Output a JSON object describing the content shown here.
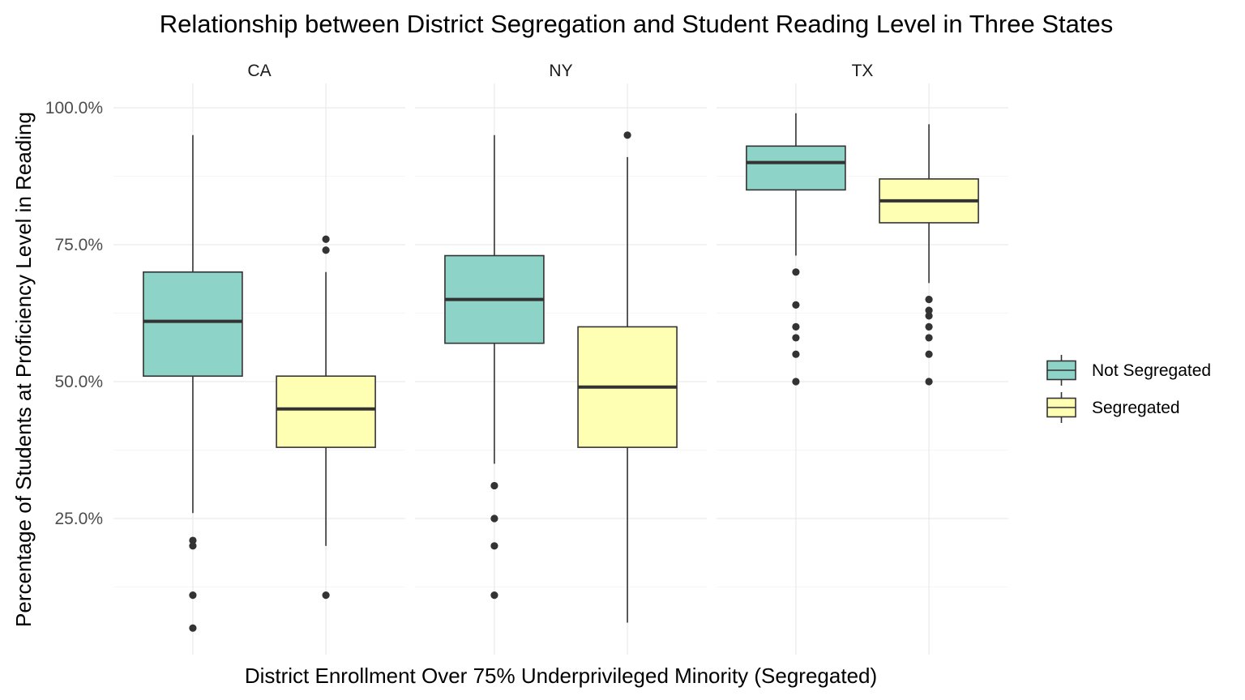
{
  "chart_data": {
    "type": "boxplot",
    "title": "Relationship between District Segregation and Student Reading Level in Three States",
    "xlabel": "District Enrollment Over 75% Underprivileged Minority (Segregated)",
    "ylabel": "Percentage of Students at Proficiency Level in Reading",
    "ylim": [
      0.0,
      1.0
    ],
    "y_ticks": [
      0.25,
      0.5,
      0.75,
      1.0
    ],
    "y_tick_labels": [
      "25.0%",
      "50.0%",
      "75.0%",
      "100.0%"
    ],
    "grid": true,
    "legend_position": "right",
    "series": [
      {
        "name": "Not Segregated",
        "color": "#8DD3C7"
      },
      {
        "name": "Segregated",
        "color": "#FFFFB3"
      }
    ],
    "facets": [
      {
        "label": "CA",
        "boxes": [
          {
            "series": "Not Segregated",
            "whisker_low": 0.26,
            "q1": 0.51,
            "median": 0.61,
            "q3": 0.7,
            "whisker_high": 0.95,
            "outliers": [
              0.21,
              0.2,
              0.11,
              0.05
            ]
          },
          {
            "series": "Segregated",
            "whisker_low": 0.2,
            "q1": 0.38,
            "median": 0.45,
            "q3": 0.51,
            "whisker_high": 0.7,
            "outliers": [
              0.76,
              0.74,
              0.11
            ]
          }
        ]
      },
      {
        "label": "NY",
        "boxes": [
          {
            "series": "Not Segregated",
            "whisker_low": 0.35,
            "q1": 0.57,
            "median": 0.65,
            "q3": 0.73,
            "whisker_high": 0.95,
            "outliers": [
              0.31,
              0.25,
              0.2,
              0.11
            ]
          },
          {
            "series": "Segregated",
            "whisker_low": 0.06,
            "q1": 0.38,
            "median": 0.49,
            "q3": 0.6,
            "whisker_high": 0.91,
            "outliers": [
              0.95
            ]
          }
        ]
      },
      {
        "label": "TX",
        "boxes": [
          {
            "series": "Not Segregated",
            "whisker_low": 0.73,
            "q1": 0.85,
            "median": 0.9,
            "q3": 0.93,
            "whisker_high": 0.99,
            "outliers": [
              0.7,
              0.64,
              0.6,
              0.58,
              0.55,
              0.5
            ]
          },
          {
            "series": "Segregated",
            "whisker_low": 0.68,
            "q1": 0.79,
            "median": 0.83,
            "q3": 0.87,
            "whisker_high": 0.97,
            "outliers": [
              0.65,
              0.63,
              0.62,
              0.6,
              0.58,
              0.55,
              0.5
            ]
          }
        ]
      }
    ]
  }
}
